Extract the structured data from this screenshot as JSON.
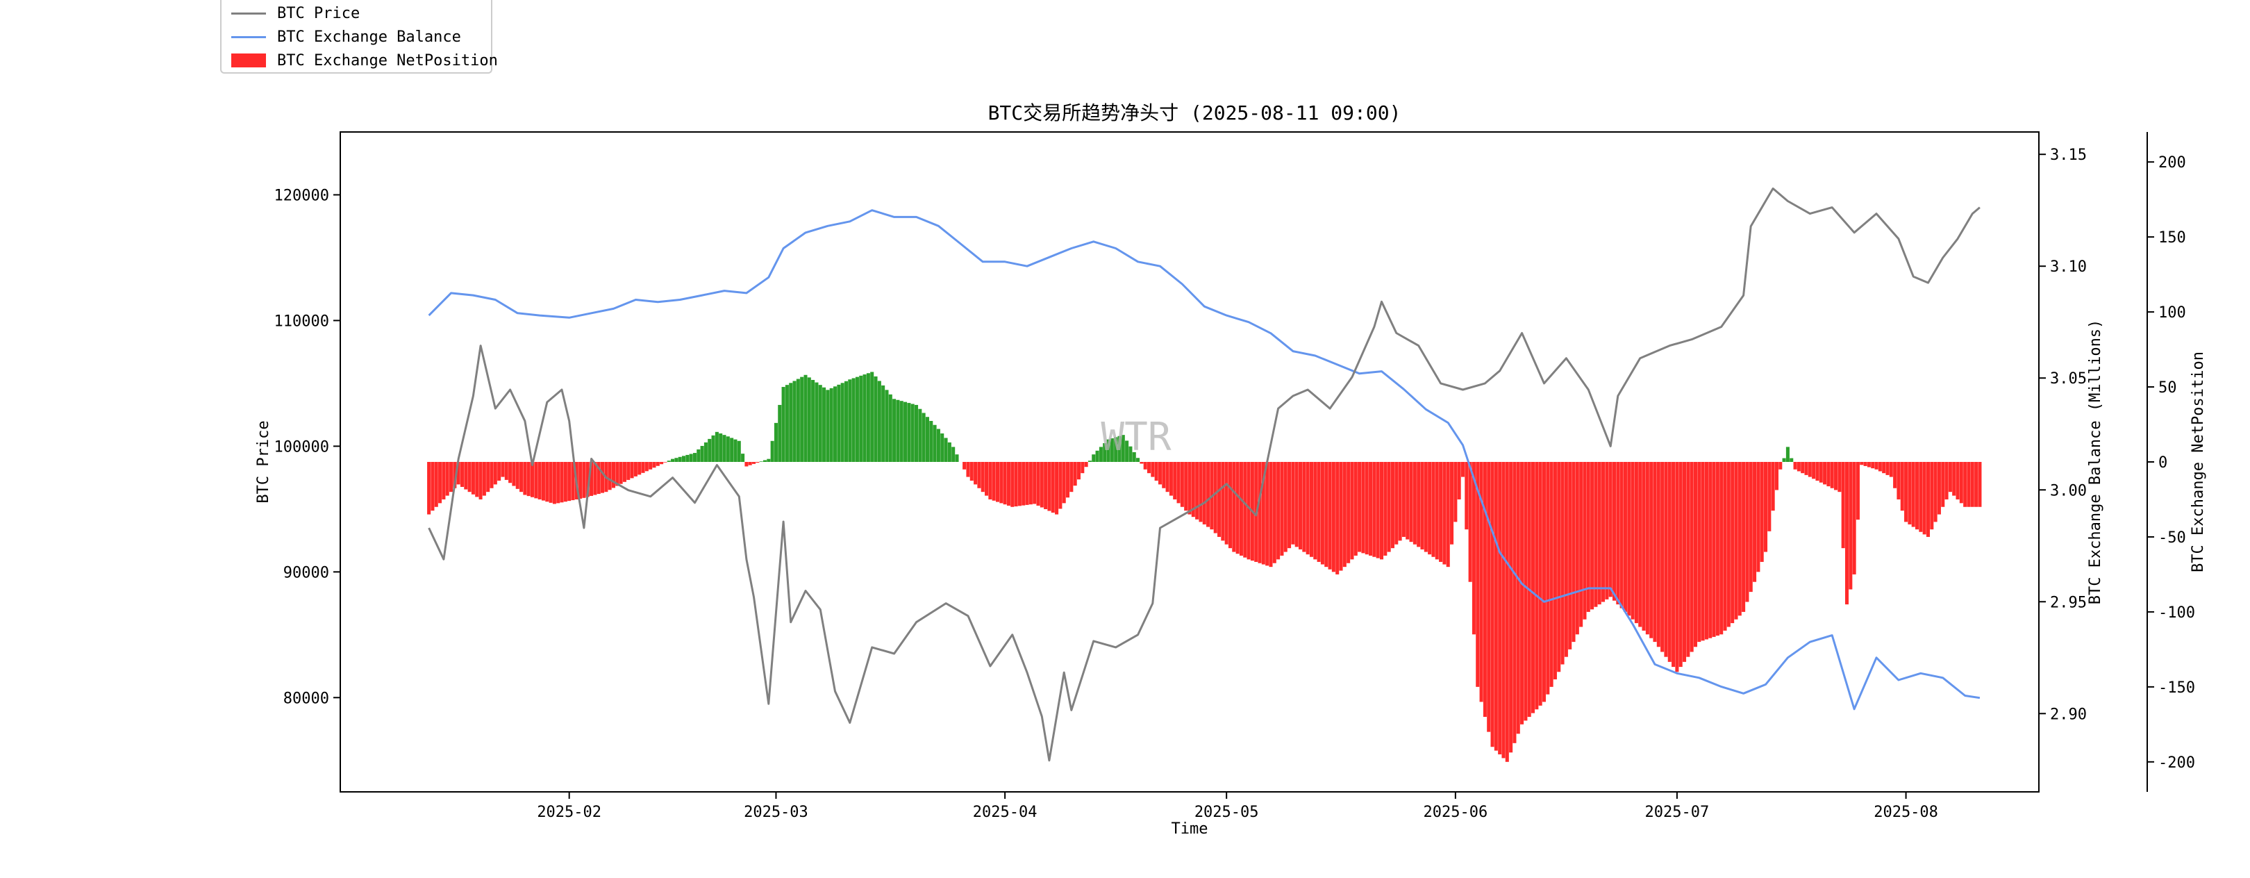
{
  "chart_data": {
    "type": "line+bar",
    "title": "BTC交易所趋势净头寸 (2025-08-11 09:00)",
    "xlabel": "Time",
    "x_ticks": [
      "2025-02",
      "2025-03",
      "2025-04",
      "2025-05",
      "2025-06",
      "2025-07",
      "2025-08"
    ],
    "x_range": [
      "2025-01-01",
      "2025-08-19"
    ],
    "watermark": "WTR",
    "legend_placement": "top-left",
    "grid": false,
    "axes": {
      "price": {
        "label": "BTC Price",
        "ticks": [
          "80000",
          "90000",
          "100000",
          "110000",
          "120000"
        ],
        "range": [
          72500,
          125000
        ]
      },
      "balance": {
        "label": "BTC Exchange Balance (Millions)",
        "ticks": [
          "2.90",
          "2.95",
          "3.00",
          "3.05",
          "3.10",
          "3.15"
        ],
        "range": [
          2.865,
          3.16
        ]
      },
      "netposition": {
        "label": "BTC Exchange NetPosition",
        "ticks": [
          "-200",
          "-150",
          "-100",
          "-50",
          "0",
          "50",
          "100",
          "150",
          "200"
        ],
        "range": [
          -220,
          220
        ]
      }
    },
    "legend": [
      {
        "label": "BTC Price",
        "color": "#808080"
      },
      {
        "label": "BTC Exchange Balance",
        "color": "#6495ED"
      },
      {
        "label": "BTC Exchange NetPosition",
        "color": "#ff2a2a"
      }
    ],
    "colors": {
      "price": "#808080",
      "balance": "#6495ED",
      "positive": "#2ca02c",
      "negative": "#ff2a2a"
    },
    "series": [
      {
        "name": "BTC Price",
        "axis": "price",
        "x": [
          "2025-01-13",
          "2025-01-15",
          "2025-01-17",
          "2025-01-19",
          "2025-01-20",
          "2025-01-22",
          "2025-01-24",
          "2025-01-26",
          "2025-01-27",
          "2025-01-29",
          "2025-01-31",
          "2025-02-01",
          "2025-02-02",
          "2025-02-03",
          "2025-02-04",
          "2025-02-06",
          "2025-02-09",
          "2025-02-12",
          "2025-02-15",
          "2025-02-18",
          "2025-02-21",
          "2025-02-24",
          "2025-02-25",
          "2025-02-26",
          "2025-02-28",
          "2025-03-02",
          "2025-03-03",
          "2025-03-05",
          "2025-03-07",
          "2025-03-09",
          "2025-03-11",
          "2025-03-14",
          "2025-03-17",
          "2025-03-20",
          "2025-03-24",
          "2025-03-27",
          "2025-03-30",
          "2025-04-02",
          "2025-04-04",
          "2025-04-06",
          "2025-04-07",
          "2025-04-09",
          "2025-04-10",
          "2025-04-13",
          "2025-04-16",
          "2025-04-19",
          "2025-04-21",
          "2025-04-22",
          "2025-04-25",
          "2025-04-28",
          "2025-05-01",
          "2025-05-05",
          "2025-05-08",
          "2025-05-10",
          "2025-05-12",
          "2025-05-15",
          "2025-05-18",
          "2025-05-21",
          "2025-05-22",
          "2025-05-24",
          "2025-05-27",
          "2025-05-30",
          "2025-06-02",
          "2025-06-05",
          "2025-06-07",
          "2025-06-10",
          "2025-06-13",
          "2025-06-16",
          "2025-06-19",
          "2025-06-22",
          "2025-06-23",
          "2025-06-26",
          "2025-06-30",
          "2025-07-03",
          "2025-07-07",
          "2025-07-10",
          "2025-07-11",
          "2025-07-14",
          "2025-07-16",
          "2025-07-19",
          "2025-07-22",
          "2025-07-25",
          "2025-07-28",
          "2025-07-31",
          "2025-08-02",
          "2025-08-04",
          "2025-08-06",
          "2025-08-08",
          "2025-08-10",
          "2025-08-11"
        ],
        "values": [
          93500,
          91000,
          99000,
          104000,
          108000,
          103000,
          104500,
          102000,
          98500,
          103500,
          104500,
          102000,
          97000,
          93500,
          99000,
          97500,
          96500,
          96000,
          97500,
          95500,
          98500,
          96000,
          91000,
          88000,
          79500,
          94000,
          86000,
          88500,
          87000,
          80500,
          78000,
          84000,
          83500,
          86000,
          87500,
          86500,
          82500,
          85000,
          82000,
          78500,
          75000,
          82000,
          79000,
          84500,
          84000,
          85000,
          87500,
          93500,
          94500,
          95500,
          97000,
          94500,
          103000,
          104000,
          104500,
          103000,
          105500,
          109500,
          111500,
          109000,
          108000,
          105000,
          104500,
          105000,
          106000,
          109000,
          105000,
          107000,
          104500,
          100000,
          104000,
          107000,
          108000,
          108500,
          109500,
          112000,
          117500,
          120500,
          119500,
          118500,
          119000,
          117000,
          118500,
          116500,
          113500,
          113000,
          115000,
          116500,
          118500,
          119000
        ]
      },
      {
        "name": "BTC Exchange Balance",
        "axis": "balance",
        "x": [
          "2025-01-13",
          "2025-01-16",
          "2025-01-19",
          "2025-01-22",
          "2025-01-25",
          "2025-01-28",
          "2025-02-01",
          "2025-02-04",
          "2025-02-07",
          "2025-02-10",
          "2025-02-13",
          "2025-02-16",
          "2025-02-19",
          "2025-02-22",
          "2025-02-25",
          "2025-02-28",
          "2025-03-02",
          "2025-03-05",
          "2025-03-08",
          "2025-03-11",
          "2025-03-14",
          "2025-03-17",
          "2025-03-20",
          "2025-03-23",
          "2025-03-26",
          "2025-03-29",
          "2025-04-01",
          "2025-04-04",
          "2025-04-07",
          "2025-04-10",
          "2025-04-13",
          "2025-04-16",
          "2025-04-19",
          "2025-04-22",
          "2025-04-25",
          "2025-04-28",
          "2025-05-01",
          "2025-05-04",
          "2025-05-07",
          "2025-05-10",
          "2025-05-13",
          "2025-05-16",
          "2025-05-19",
          "2025-05-22",
          "2025-05-25",
          "2025-05-28",
          "2025-05-31",
          "2025-06-02",
          "2025-06-04",
          "2025-06-07",
          "2025-06-10",
          "2025-06-13",
          "2025-06-16",
          "2025-06-19",
          "2025-06-22",
          "2025-06-25",
          "2025-06-28",
          "2025-07-01",
          "2025-07-04",
          "2025-07-07",
          "2025-07-10",
          "2025-07-13",
          "2025-07-16",
          "2025-07-19",
          "2025-07-22",
          "2025-07-25",
          "2025-07-28",
          "2025-07-31",
          "2025-08-03",
          "2025-08-06",
          "2025-08-09",
          "2025-08-11"
        ],
        "values": [
          3.078,
          3.088,
          3.087,
          3.085,
          3.079,
          3.078,
          3.077,
          3.079,
          3.081,
          3.085,
          3.084,
          3.085,
          3.087,
          3.089,
          3.088,
          3.095,
          3.108,
          3.115,
          3.118,
          3.12,
          3.125,
          3.122,
          3.122,
          3.118,
          3.11,
          3.102,
          3.102,
          3.1,
          3.104,
          3.108,
          3.111,
          3.108,
          3.102,
          3.1,
          3.092,
          3.082,
          3.078,
          3.075,
          3.07,
          3.062,
          3.06,
          3.056,
          3.052,
          3.053,
          3.045,
          3.036,
          3.03,
          3.02,
          3.0,
          2.972,
          2.958,
          2.95,
          2.953,
          2.956,
          2.956,
          2.94,
          2.922,
          2.918,
          2.916,
          2.912,
          2.909,
          2.913,
          2.925,
          2.932,
          2.935,
          2.902,
          2.925,
          2.915,
          2.918,
          2.916,
          2.908,
          2.907
        ]
      }
    ],
    "netposition_bars": {
      "axis": "netposition",
      "x": [
        "2025-01-13",
        "2025-01-17",
        "2025-01-20",
        "2025-01-23",
        "2025-01-26",
        "2025-01-30",
        "2025-02-03",
        "2025-02-06",
        "2025-02-09",
        "2025-02-12",
        "2025-02-15",
        "2025-02-18",
        "2025-02-21",
        "2025-02-24",
        "2025-02-25",
        "2025-02-28",
        "2025-03-02",
        "2025-03-05",
        "2025-03-08",
        "2025-03-11",
        "2025-03-14",
        "2025-03-17",
        "2025-03-20",
        "2025-03-23",
        "2025-03-25",
        "2025-03-27",
        "2025-03-30",
        "2025-04-02",
        "2025-04-05",
        "2025-04-08",
        "2025-04-10",
        "2025-04-13",
        "2025-04-15",
        "2025-04-17",
        "2025-04-20",
        "2025-04-23",
        "2025-04-26",
        "2025-04-29",
        "2025-05-02",
        "2025-05-04",
        "2025-05-07",
        "2025-05-10",
        "2025-05-13",
        "2025-05-16",
        "2025-05-19",
        "2025-05-22",
        "2025-05-25",
        "2025-05-28",
        "2025-05-31",
        "2025-06-02",
        "2025-06-04",
        "2025-06-06",
        "2025-06-08",
        "2025-06-10",
        "2025-06-13",
        "2025-06-16",
        "2025-06-19",
        "2025-06-22",
        "2025-06-25",
        "2025-06-28",
        "2025-07-01",
        "2025-07-04",
        "2025-07-07",
        "2025-07-10",
        "2025-07-13",
        "2025-07-15",
        "2025-07-16",
        "2025-07-17",
        "2025-07-19",
        "2025-07-21",
        "2025-07-23",
        "2025-07-24",
        "2025-07-25",
        "2025-07-26",
        "2025-07-28",
        "2025-07-30",
        "2025-08-01",
        "2025-08-04",
        "2025-08-07",
        "2025-08-09",
        "2025-08-11"
      ],
      "values": [
        -35,
        -15,
        -25,
        -10,
        -22,
        -28,
        -24,
        -20,
        -12,
        -5,
        2,
        6,
        20,
        14,
        -3,
        2,
        50,
        58,
        48,
        55,
        60,
        42,
        38,
        22,
        10,
        -10,
        -25,
        -30,
        -28,
        -35,
        -20,
        5,
        15,
        18,
        -5,
        -20,
        -35,
        -45,
        -60,
        -65,
        -70,
        -55,
        -65,
        -75,
        -60,
        -65,
        -50,
        -60,
        -70,
        -10,
        -150,
        -190,
        -200,
        -175,
        -160,
        -130,
        -100,
        -90,
        -105,
        -120,
        -140,
        -120,
        -115,
        -100,
        -60,
        -5,
        10,
        -5,
        -10,
        -15,
        -20,
        -95,
        -75,
        -2,
        -5,
        -10,
        -40,
        -50,
        -20,
        -30,
        -30
      ]
    }
  }
}
